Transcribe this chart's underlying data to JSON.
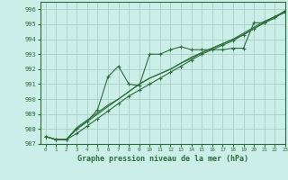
{
  "title": "Graphe pression niveau de la mer (hPa)",
  "bg_color": "#cceee8",
  "grid_color": "#aad4ca",
  "line_color": "#2d6e3a",
  "xlim": [
    -0.5,
    23
  ],
  "ylim": [
    987,
    996.5
  ],
  "yticks": [
    987,
    988,
    989,
    990,
    991,
    992,
    993,
    994,
    995,
    996
  ],
  "xticks": [
    0,
    1,
    2,
    3,
    4,
    5,
    6,
    7,
    8,
    9,
    10,
    11,
    12,
    13,
    14,
    15,
    16,
    17,
    18,
    19,
    20,
    21,
    22,
    23
  ],
  "series": {
    "upper": [
      987.5,
      987.3,
      987.3,
      988.0,
      988.5,
      989.3,
      991.5,
      992.2,
      991.0,
      990.9,
      993.0,
      993.0,
      993.3,
      993.5,
      993.3,
      993.3,
      993.3,
      993.3,
      993.4,
      993.4,
      995.1,
      995.1,
      995.5,
      995.8
    ],
    "lower": [
      987.5,
      987.3,
      987.3,
      987.7,
      988.2,
      988.7,
      989.2,
      989.7,
      990.2,
      990.6,
      991.0,
      991.4,
      991.8,
      992.2,
      992.6,
      993.0,
      993.3,
      993.6,
      993.9,
      994.3,
      994.7,
      995.1,
      995.5,
      995.9
    ],
    "mid1": [
      987.5,
      987.3,
      987.3,
      988.0,
      988.5,
      989.0,
      989.5,
      990.0,
      990.5,
      991.0,
      991.4,
      991.7,
      992.0,
      992.4,
      992.8,
      993.1,
      993.4,
      993.7,
      994.0,
      994.4,
      994.8,
      995.2,
      995.5,
      995.8
    ],
    "mid2": [
      987.5,
      987.3,
      987.3,
      988.1,
      988.6,
      989.1,
      989.6,
      990.0,
      990.5,
      991.0,
      991.4,
      991.7,
      992.0,
      992.4,
      992.7,
      993.1,
      993.4,
      993.7,
      994.0,
      994.3,
      994.7,
      995.1,
      995.4,
      995.9
    ]
  }
}
